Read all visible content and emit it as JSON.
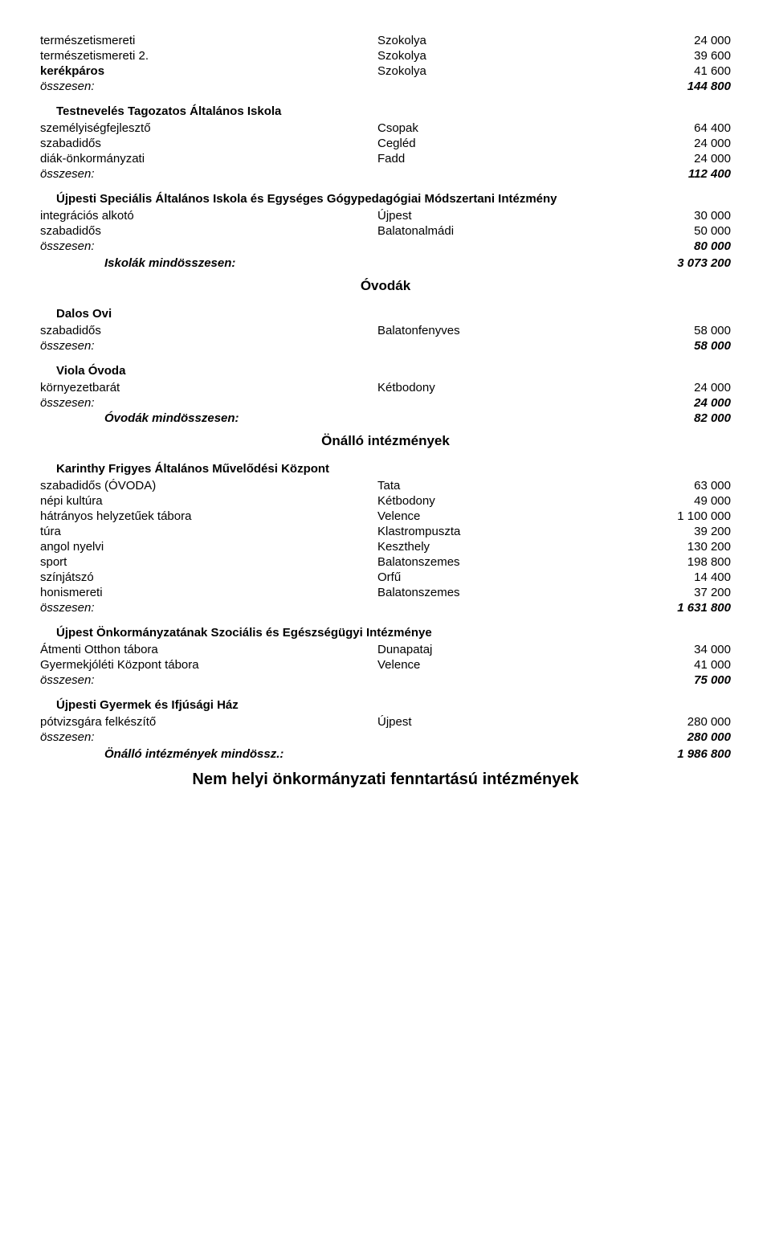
{
  "top": {
    "r1": {
      "a": "természetismereti",
      "b": "Szokolya",
      "c": "24 000"
    },
    "r2": {
      "a": "természetismereti 2.",
      "b": "Szokolya",
      "c": "39 600"
    },
    "r3": {
      "a": "kerékpáros",
      "b": "Szokolya",
      "c": "41 600"
    },
    "sum": {
      "a": "összesen:",
      "c": "144 800"
    }
  },
  "testneveles": {
    "title": "Testnevelés Tagozatos Általános Iskola",
    "r1": {
      "a": "személyiségfejlesztő",
      "b": "Csopak",
      "c": "64 400"
    },
    "r2": {
      "a": "szabadidős",
      "b": "Cegléd",
      "c": "24 000"
    },
    "r3": {
      "a": "diák-önkormányzati",
      "b": "Fadd",
      "c": "24 000"
    },
    "sum": {
      "a": "összesen:",
      "c": "112 400"
    }
  },
  "ujpesti_spec": {
    "title": "Újpesti Speciális Általános Iskola és Egységes Gógypedagógiai Módszertani Intézmény",
    "r1": {
      "a": "integrációs alkotó",
      "b": "Újpest",
      "c": "30 000"
    },
    "r2": {
      "a": "szabadidős",
      "b": "Balatonalmádi",
      "c": "50 000"
    },
    "sum": {
      "a": "összesen:",
      "c": "80 000"
    }
  },
  "iskolak_total": {
    "label": "Iskolák mindösszesen:",
    "value": "3 073 200"
  },
  "ovodak_heading": "Óvodák",
  "dalos": {
    "title": "Dalos Ovi",
    "r1": {
      "a": "szabadidős",
      "b": "Balatonfenyves",
      "c": "58 000"
    },
    "sum": {
      "a": "összesen:",
      "c": "58 000"
    }
  },
  "viola": {
    "title": "Viola Óvoda",
    "r1": {
      "a": "környezetbarát",
      "b": "Kétbodony",
      "c": "24 000"
    },
    "sum": {
      "a": "összesen:",
      "c": "24 000"
    }
  },
  "ovodak_total": {
    "label": "Óvodák mindösszesen:",
    "value": "82 000"
  },
  "onallo_heading": "Önálló intézmények",
  "karinthy": {
    "title": "Karinthy Frigyes Általános Művelődési Központ",
    "rows": [
      {
        "a": "szabadidős (ÓVODA)",
        "b": "Tata",
        "c": "63 000"
      },
      {
        "a": "népi kultúra",
        "b": "Kétbodony",
        "c": "49 000"
      },
      {
        "a": "hátrányos helyzetűek tábora",
        "b": "Velence",
        "c": "1 100 000"
      },
      {
        "a": "túra",
        "b": "Klastrompuszta",
        "c": "39 200"
      },
      {
        "a": "angol nyelvi",
        "b": "Keszthely",
        "c": "130 200"
      },
      {
        "a": "sport",
        "b": "Balatonszemes",
        "c": "198 800"
      },
      {
        "a": "színjátszó",
        "b": "Orfű",
        "c": "14 400"
      },
      {
        "a": "honismereti",
        "b": "Balatonszemes",
        "c": "37 200"
      }
    ],
    "sum": {
      "a": "összesen:",
      "c": "1 631 800"
    }
  },
  "ujpest_onk": {
    "title": "Újpest Önkormányzatának Szociális és Egészségügyi Intézménye",
    "r1": {
      "a": "Átmenti Otthon tábora",
      "b": "Dunapataj",
      "c": "34 000"
    },
    "r2": {
      "a": "Gyermekjóléti Központ tábora",
      "b": "Velence",
      "c": "41 000"
    },
    "sum": {
      "a": "összesen:",
      "c": "75 000"
    }
  },
  "ifjusagi": {
    "title": "Újpesti Gyermek és Ifjúsági Ház",
    "r1": {
      "a": "pótvizsgára felkészítő",
      "b": "Újpest",
      "c": "280 000"
    },
    "sum": {
      "a": "összesen:",
      "c": "280 000"
    }
  },
  "onallo_total": {
    "label": "Önálló intézmények mindössz.:",
    "value": "1 986 800"
  },
  "final_heading": "Nem helyi önkormányzati fenntartású intézmények"
}
